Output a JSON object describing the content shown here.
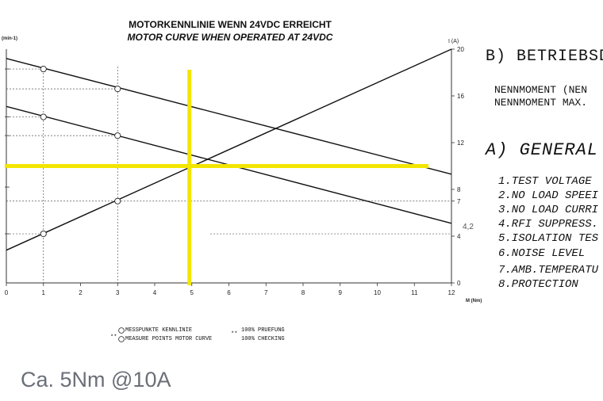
{
  "chart_data": {
    "type": "line",
    "title": "MOTORKENNLINIE WENN 24VDC ERREICHT",
    "subtitle": "MOTOR CURVE WHEN OPERATED AT 24VDC",
    "xlabel": "M (Nm)",
    "ylabel_left": "(min-1)",
    "ylabel_right": "I (A)",
    "xlim": [
      0,
      12
    ],
    "ylim_right": [
      0,
      20
    ],
    "x_ticks": [
      "0",
      "1",
      "2",
      "3",
      "4",
      "5",
      "6",
      "7",
      "8",
      "9",
      "10",
      "11",
      "12"
    ],
    "y_right_ticks": [
      "0",
      "4",
      "7",
      "8",
      "12",
      "16",
      "20"
    ],
    "right_extra_label": "4,2",
    "series": [
      {
        "x": [
          0,
          12
        ],
        "y": [
          19.2,
          9.3
        ]
      },
      {
        "x": [
          0,
          12
        ],
        "y": [
          15.1,
          5.1
        ]
      },
      {
        "x": [
          0,
          12
        ],
        "y": [
          2.8,
          20
        ]
      }
    ],
    "measure_points": [
      {
        "x": 1,
        "y": 18.3
      },
      {
        "x": 3,
        "y": 16.6
      },
      {
        "x": 1,
        "y": 14.2
      },
      {
        "x": 3,
        "y": 12.6
      },
      {
        "x": 1,
        "y": 4.2
      },
      {
        "x": 3,
        "y": 7.0
      }
    ],
    "highlight": {
      "x": 5,
      "y": 10,
      "color": "#f2e600"
    },
    "grid": "dashed reference lines",
    "legend": {
      "row1_left": "MESSPUNKTE KENNLINIE",
      "row1_right": "100% PRUEFUNG",
      "row2_left": "MEASURE POINTS MOTOR CURVE",
      "row2_right": "100% CHECKING",
      "marker": "**"
    }
  },
  "side_panel": {
    "section_b_heading": "B) BETRIEBSD",
    "section_b_lines": [
      "NENNMOMENT (NEN",
      "NENNMOMENT MAX."
    ],
    "section_a_heading": "A) GENERAL",
    "section_a_items": [
      "1.TEST VOLTAGE",
      "2.NO LOAD SPEEI",
      "3.NO LOAD CURRI",
      "4.RFI SUPPRESS.",
      "5.ISOLATION TES",
      "6.NOISE LEVEL",
      "7.AMB.TEMPERATU",
      "8.PROTECTION"
    ]
  },
  "caption": "Ca. 5Nm @10A"
}
